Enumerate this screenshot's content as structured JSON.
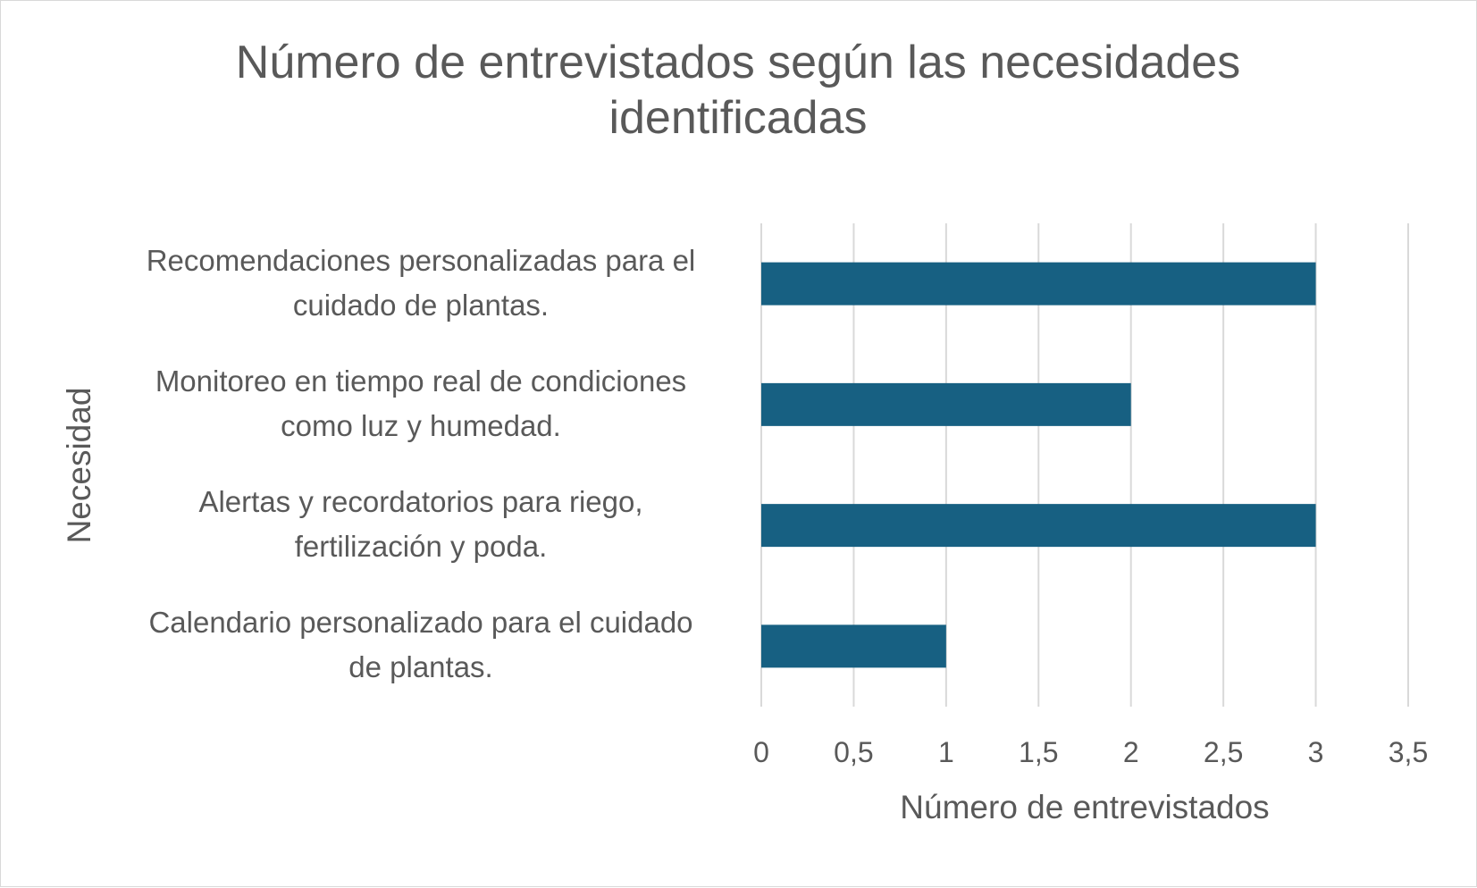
{
  "chart_data": {
    "type": "bar",
    "orientation": "horizontal",
    "title": "Número de entrevistados según las necesidades identificadas",
    "title_lines": [
      "Número de entrevistados según las necesidades",
      "identificadas"
    ],
    "xlabel": "Número de entrevistados",
    "ylabel": "Necesidad",
    "categories": [
      "Recomendaciones personalizadas para el cuidado de plantas.",
      "Monitoreo en tiempo real de condiciones como luz y humedad.",
      "Alertas y recordatorios para riego, fertilización y poda.",
      "Calendario personalizado para el cuidado de plantas."
    ],
    "category_lines": [
      [
        "Recomendaciones personalizadas para el",
        "cuidado de plantas."
      ],
      [
        "Monitoreo en tiempo real de condiciones",
        "como luz y humedad."
      ],
      [
        "Alertas y recordatorios para riego,",
        "fertilización y poda."
      ],
      [
        "Calendario personalizado para el cuidado",
        "de plantas."
      ]
    ],
    "values": [
      3,
      2,
      3,
      1
    ],
    "xlim": [
      0,
      3.5
    ],
    "xticks": [
      "0",
      "0,5",
      "1",
      "1,5",
      "2",
      "2,5",
      "3",
      "3,5"
    ],
    "grid": true,
    "legend": "none",
    "bar_color": "#176082",
    "grid_color": "#d9d9d9",
    "text_color": "#595959"
  }
}
